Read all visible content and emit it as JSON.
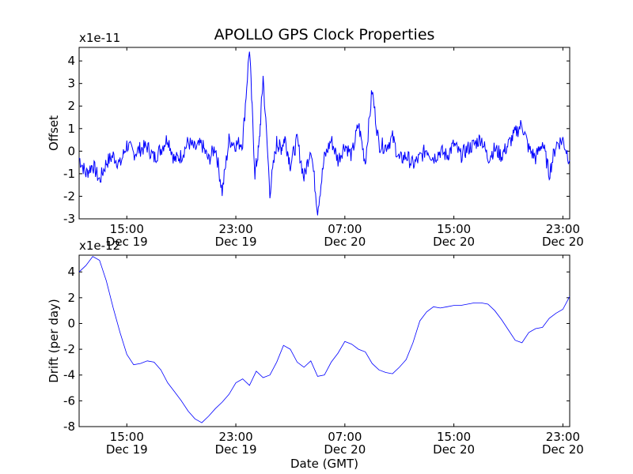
{
  "figure_title": "APOLLO GPS Clock Properties",
  "chart_data": [
    {
      "type": "line",
      "title": "APOLLO GPS Clock Properties",
      "ylabel": "Offset",
      "xlabel": "",
      "y_multiplier": "x1e-11",
      "ylim": [
        -3,
        4.6
      ],
      "yticks": [
        -3,
        -2,
        -1,
        0,
        1,
        2,
        3,
        4
      ],
      "xlim": [
        "Dec 19 11:30",
        "Dec 20 23:30"
      ],
      "xticks": [
        {
          "time": "15:00",
          "date": "Dec 19"
        },
        {
          "time": "23:00",
          "date": "Dec 19"
        },
        {
          "time": "07:00",
          "date": "Dec 20"
        },
        {
          "time": "15:00",
          "date": "Dec 20"
        },
        {
          "time": "23:00",
          "date": "Dec 20"
        }
      ],
      "grid": false,
      "legend": "none",
      "series": [
        {
          "color": "#0000ff",
          "x_hours_from_dec19_0000": [
            11.5,
            12,
            12.5,
            13,
            13.5,
            14,
            14.5,
            15,
            15.5,
            16,
            16.5,
            17,
            17.5,
            18,
            18.5,
            19,
            19.5,
            20,
            20.5,
            21,
            21.5,
            22,
            22.5,
            23,
            23.5,
            24,
            24.4,
            24.7,
            25,
            25.5,
            26,
            26.3,
            26.6,
            27,
            27.5,
            28,
            28.5,
            29,
            29.5,
            30,
            30.5,
            31,
            31.5,
            32,
            32.5,
            33,
            33.5,
            34,
            34.5,
            35,
            35.5,
            36,
            36.5,
            37,
            37.5,
            38,
            38.5,
            39,
            39.5,
            40,
            40.5,
            41,
            41.5,
            42,
            42.5,
            43,
            43.5,
            44,
            44.5,
            45,
            45.5,
            46,
            46.5,
            47,
            47.5
          ],
          "values": [
            -0.3,
            -1.0,
            -0.6,
            -1.3,
            -0.5,
            -0.2,
            -0.6,
            0.3,
            -0.1,
            0.1,
            0.2,
            -0.3,
            0.1,
            0.6,
            -0.4,
            -0.2,
            0.4,
            0.1,
            0.3,
            -0.4,
            0.2,
            -1.8,
            0.5,
            0.3,
            0.4,
            4.6,
            -1.0,
            0.2,
            3.3,
            -1.8,
            0.4,
            0.1,
            0.6,
            -0.6,
            0.5,
            -1.2,
            0.2,
            -2.6,
            -0.3,
            0.5,
            -0.4,
            0.3,
            -0.2,
            1.2,
            -0.5,
            2.7,
            0.3,
            0.2,
            0.6,
            -0.4,
            -0.2,
            -0.6,
            -0.3,
            0.1,
            -0.3,
            0.0,
            -0.2,
            0.3,
            -0.2,
            0.1,
            0.3,
            0.6,
            -0.3,
            0.1,
            -0.2,
            0.3,
            0.8,
            1.2,
            0.1,
            -0.3,
            0.4,
            -1.0,
            0.3,
            0.5,
            -0.4
          ]
        }
      ]
    },
    {
      "type": "line",
      "title": "",
      "ylabel": "Drift (per day)",
      "xlabel": "Date (GMT)",
      "y_multiplier": "x1e-12",
      "ylim": [
        -8,
        5.3
      ],
      "yticks": [
        -8,
        -6,
        -4,
        -2,
        0,
        2,
        4
      ],
      "xlim": [
        "Dec 19 11:30",
        "Dec 20 23:30"
      ],
      "xticks": [
        {
          "time": "15:00",
          "date": "Dec 19"
        },
        {
          "time": "23:00",
          "date": "Dec 19"
        },
        {
          "time": "07:00",
          "date": "Dec 20"
        },
        {
          "time": "15:00",
          "date": "Dec 20"
        },
        {
          "time": "23:00",
          "date": "Dec 20"
        }
      ],
      "grid": false,
      "legend": "none",
      "series": [
        {
          "color": "#0000ff",
          "x_hours_from_dec19_0000": [
            11.5,
            12,
            12.5,
            13,
            13.5,
            14,
            14.5,
            15,
            15.5,
            16,
            16.5,
            17,
            17.5,
            18,
            18.5,
            19,
            19.5,
            20,
            20.5,
            21,
            21.5,
            22,
            22.5,
            23,
            23.5,
            24,
            24.5,
            25,
            25.5,
            26,
            26.5,
            27,
            27.5,
            28,
            28.5,
            29,
            29.5,
            30,
            30.5,
            31,
            31.5,
            32,
            32.5,
            33,
            33.5,
            34,
            34.5,
            35,
            35.5,
            36,
            36.5,
            37,
            37.5,
            38,
            38.5,
            39,
            39.5,
            40,
            40.5,
            41,
            41.5,
            42,
            42.5,
            43,
            43.5,
            44,
            44.5,
            45,
            45.5,
            46,
            46.5,
            47,
            47.5
          ],
          "values": [
            4.0,
            4.5,
            5.2,
            4.9,
            3.3,
            1.2,
            -0.7,
            -2.4,
            -3.2,
            -3.1,
            -2.9,
            -3.0,
            -3.6,
            -4.6,
            -5.3,
            -6.0,
            -6.8,
            -7.4,
            -7.7,
            -7.2,
            -6.6,
            -6.1,
            -5.5,
            -4.6,
            -4.3,
            -4.8,
            -3.7,
            -4.2,
            -4.0,
            -3.0,
            -1.7,
            -2.0,
            -3.0,
            -3.4,
            -2.9,
            -4.1,
            -4.0,
            -3.0,
            -2.3,
            -1.4,
            -1.6,
            -2.0,
            -2.2,
            -3.1,
            -3.6,
            -3.8,
            -3.9,
            -3.4,
            -2.8,
            -1.5,
            0.2,
            0.9,
            1.3,
            1.2,
            1.3,
            1.4,
            1.4,
            1.5,
            1.6,
            1.6,
            1.5,
            1.0,
            0.3,
            -0.5,
            -1.3,
            -1.5,
            -0.7,
            -0.4,
            -0.3,
            0.4,
            0.8,
            1.1,
            2.1
          ]
        }
      ]
    }
  ]
}
